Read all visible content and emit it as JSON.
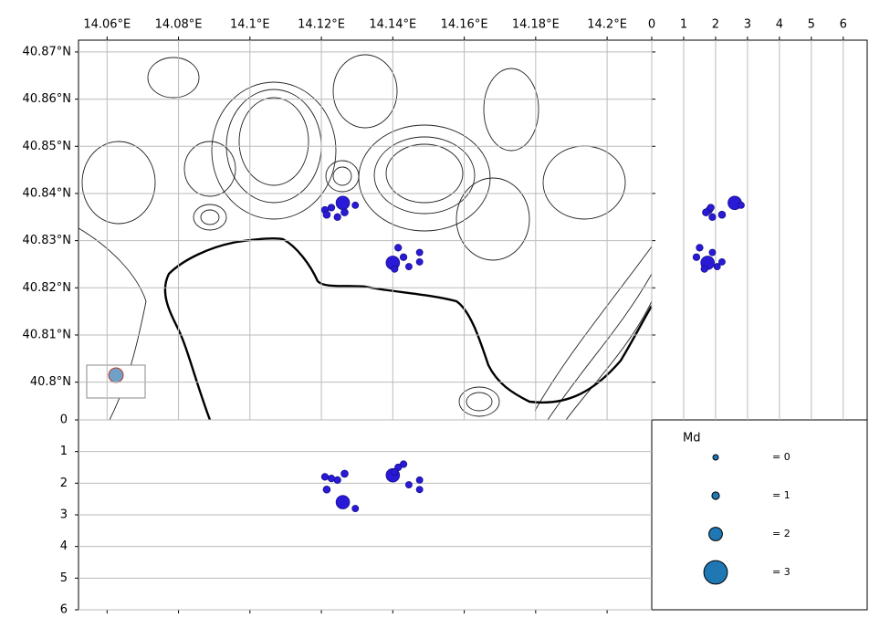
{
  "chart_data": {
    "type": "scatter",
    "events": {
      "lon": [
        14.126,
        14.121,
        14.1215,
        14.1245,
        14.1265,
        14.1295,
        14.1228,
        14.14,
        14.1415,
        14.143,
        14.1445,
        14.1475,
        14.1475,
        14.1405
      ],
      "lat": [
        40.838,
        40.8365,
        40.8355,
        40.835,
        40.836,
        40.8375,
        40.837,
        40.8253,
        40.8285,
        40.8265,
        40.8245,
        40.8275,
        40.8255,
        40.824
      ],
      "depth": [
        2.6,
        1.8,
        2.2,
        1.9,
        1.7,
        2.8,
        1.85,
        1.75,
        1.5,
        1.4,
        2.05,
        1.9,
        2.2,
        1.65
      ],
      "md": [
        2.0,
        0.8,
        0.9,
        0.8,
        0.9,
        0.7,
        0.8,
        2.0,
        0.8,
        0.8,
        0.7,
        0.7,
        0.7,
        0.8
      ],
      "color": "#2a1ad8",
      "edge_color": "#14108a"
    },
    "map": {
      "xlim": [
        14.052,
        14.2125
      ],
      "ylim": [
        40.792,
        40.8725
      ],
      "grid": true,
      "xticks": [
        {
          "value": 14.06,
          "label": "14.06°E"
        },
        {
          "value": 14.08,
          "label": "14.08°E"
        },
        {
          "value": 14.1,
          "label": "14.1°E"
        },
        {
          "value": 14.12,
          "label": "14.12°E"
        },
        {
          "value": 14.14,
          "label": "14.14°E"
        },
        {
          "value": 14.16,
          "label": "14.16°E"
        },
        {
          "value": 14.18,
          "label": "14.18°E"
        },
        {
          "value": 14.2,
          "label": "14.2°E"
        }
      ],
      "yticks": [
        {
          "value": 40.8,
          "label": "40.8°N"
        },
        {
          "value": 40.81,
          "label": "40.81°N"
        },
        {
          "value": 40.82,
          "label": "40.82°N"
        },
        {
          "value": 40.83,
          "label": "40.83°N"
        },
        {
          "value": 40.84,
          "label": "40.84°N"
        },
        {
          "value": 40.85,
          "label": "40.85°N"
        },
        {
          "value": 40.86,
          "label": "40.86°N"
        },
        {
          "value": 40.87,
          "label": "40.87°N"
        }
      ]
    },
    "lat_depth": {
      "xlim": [
        0,
        6.75
      ],
      "xticks": [
        0,
        1,
        2,
        3,
        4,
        5,
        6
      ],
      "grid": true
    },
    "depth_lon": {
      "ylim": [
        0,
        6
      ],
      "yticks": [
        0,
        1,
        2,
        3,
        4,
        5,
        6
      ],
      "grid": true
    },
    "legend": {
      "title": "Md",
      "values": [
        0,
        1,
        2,
        3
      ],
      "labels": [
        "= 0",
        "= 1",
        "= 2",
        "= 3"
      ],
      "color": "#1f77b4"
    }
  }
}
